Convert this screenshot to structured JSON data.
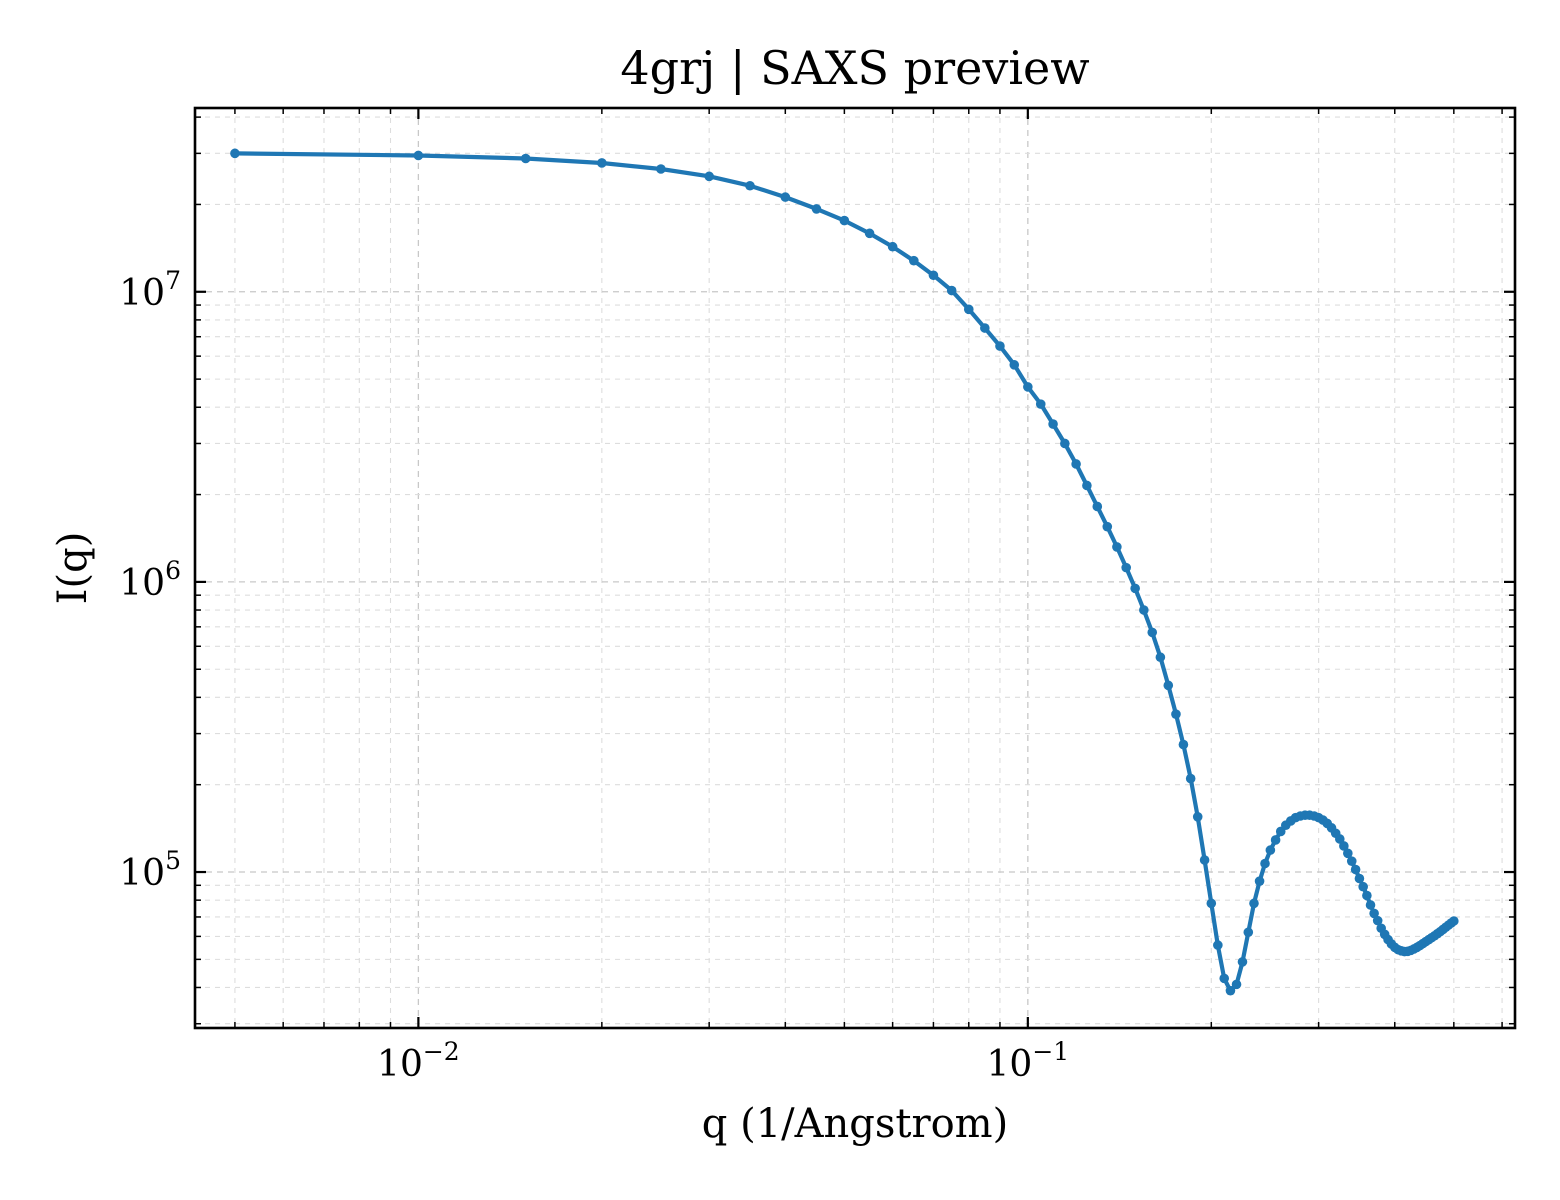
{
  "chart_data": {
    "type": "line",
    "title": "4grj | SAXS preview",
    "xlabel": "q (1/Angstrom)",
    "ylabel": "I(q)",
    "xscale": "log",
    "yscale": "log",
    "xlim": [
      0.0043,
      0.63
    ],
    "ylim": [
      29000,
      43000000
    ],
    "grid": true,
    "grid_style": "dashed",
    "xticks": [
      {
        "value": 0.01,
        "base": "10",
        "exp": "−2"
      },
      {
        "value": 0.1,
        "base": "10",
        "exp": "−1"
      }
    ],
    "yticks": [
      {
        "value": 100000,
        "base": "10",
        "exp": "5"
      },
      {
        "value": 1000000,
        "base": "10",
        "exp": "6"
      },
      {
        "value": 10000000,
        "base": "10",
        "exp": "7"
      }
    ],
    "series": [
      {
        "color": "#1f77b4",
        "marker": "circle",
        "x": [
          0.005,
          0.01,
          0.015,
          0.02,
          0.025,
          0.03,
          0.035,
          0.04,
          0.045,
          0.05,
          0.055,
          0.06,
          0.065,
          0.07,
          0.075,
          0.08,
          0.085,
          0.09,
          0.095,
          0.1,
          0.105,
          0.11,
          0.115,
          0.12,
          0.125,
          0.13,
          0.135,
          0.14,
          0.145,
          0.15,
          0.155,
          0.16,
          0.165,
          0.17,
          0.175,
          0.18,
          0.185,
          0.19,
          0.195,
          0.2,
          0.205,
          0.21,
          0.215,
          0.22,
          0.225,
          0.23,
          0.235,
          0.24,
          0.245,
          0.25,
          0.255,
          0.26,
          0.265,
          0.27,
          0.275,
          0.28,
          0.285,
          0.29,
          0.295,
          0.3,
          0.305,
          0.31,
          0.315,
          0.32,
          0.325,
          0.33,
          0.335,
          0.34,
          0.345,
          0.35,
          0.355,
          0.36,
          0.365,
          0.37,
          0.375,
          0.38,
          0.385,
          0.39,
          0.395,
          0.4,
          0.405,
          0.41,
          0.415,
          0.42,
          0.425,
          0.43,
          0.435,
          0.44,
          0.445,
          0.45,
          0.455,
          0.46,
          0.465,
          0.47,
          0.475,
          0.48,
          0.485,
          0.49,
          0.495,
          0.5
        ],
        "y": [
          30000000,
          29500000,
          28800000,
          27800000,
          26500000,
          25000000,
          23200000,
          21200000,
          19300000,
          17600000,
          15900000,
          14300000,
          12800000,
          11400000,
          10100000,
          8700000,
          7500000,
          6500000,
          5600000,
          4700000,
          4100000,
          3500000,
          3000000,
          2550000,
          2150000,
          1820000,
          1550000,
          1320000,
          1120000,
          950000,
          800000,
          670000,
          550000,
          440000,
          350000,
          275000,
          210000,
          155000,
          110000,
          78000,
          56000,
          43000,
          39000,
          41000,
          49000,
          62000,
          78000,
          93000,
          107000,
          119000,
          129000,
          138000,
          145000,
          150000,
          154000,
          156000,
          157000,
          157000,
          156000,
          154000,
          151000,
          147000,
          142000,
          136000,
          130000,
          123000,
          116000,
          109000,
          102000,
          95000,
          89000,
          83000,
          77000,
          72000,
          68000,
          64000,
          61000,
          58500,
          56500,
          55000,
          54000,
          53500,
          53200,
          53300,
          53700,
          54300,
          55000,
          55800,
          56700,
          57600,
          58500,
          59400,
          60300,
          61300,
          62300,
          63400,
          64500,
          65600,
          66700,
          67800
        ]
      }
    ]
  }
}
